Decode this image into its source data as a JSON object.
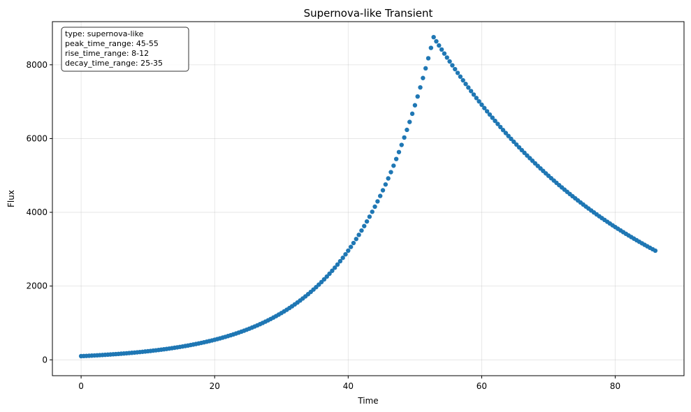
{
  "chart_data": {
    "type": "scatter",
    "title": "Supernova-like Transient",
    "xlabel": "Time",
    "ylabel": "Flux",
    "xlim": [
      -4.3,
      90.3
    ],
    "ylim": [
      -430,
      9170
    ],
    "xticks": [
      0,
      20,
      40,
      60,
      80
    ],
    "yticks": [
      0,
      2000,
      4000,
      6000,
      8000
    ],
    "grid": true,
    "marker_color": "#1f77b4",
    "annotation_lines": [
      "type: supernova-like",
      "peak_time_range: 45-55",
      "rise_time_range: 8-12",
      "decay_time_range: 25-35"
    ],
    "series": {
      "x_start": 0,
      "x_step": 0.4,
      "count": 216,
      "peak_x": 52.8,
      "peak_y": 8750,
      "start_y": 100,
      "end_y": 2960,
      "samples": [
        {
          "x": 0,
          "y": 100
        },
        {
          "x": 10,
          "y": 190
        },
        {
          "x": 20,
          "y": 450
        },
        {
          "x": 30,
          "y": 1000
        },
        {
          "x": 35,
          "y": 1600
        },
        {
          "x": 40,
          "y": 2600
        },
        {
          "x": 45,
          "y": 4400
        },
        {
          "x": 50,
          "y": 7200
        },
        {
          "x": 52.8,
          "y": 8750
        },
        {
          "x": 60,
          "y": 6950
        },
        {
          "x": 70,
          "y": 5050
        },
        {
          "x": 80,
          "y": 3650
        },
        {
          "x": 86,
          "y": 2960
        }
      ]
    }
  }
}
